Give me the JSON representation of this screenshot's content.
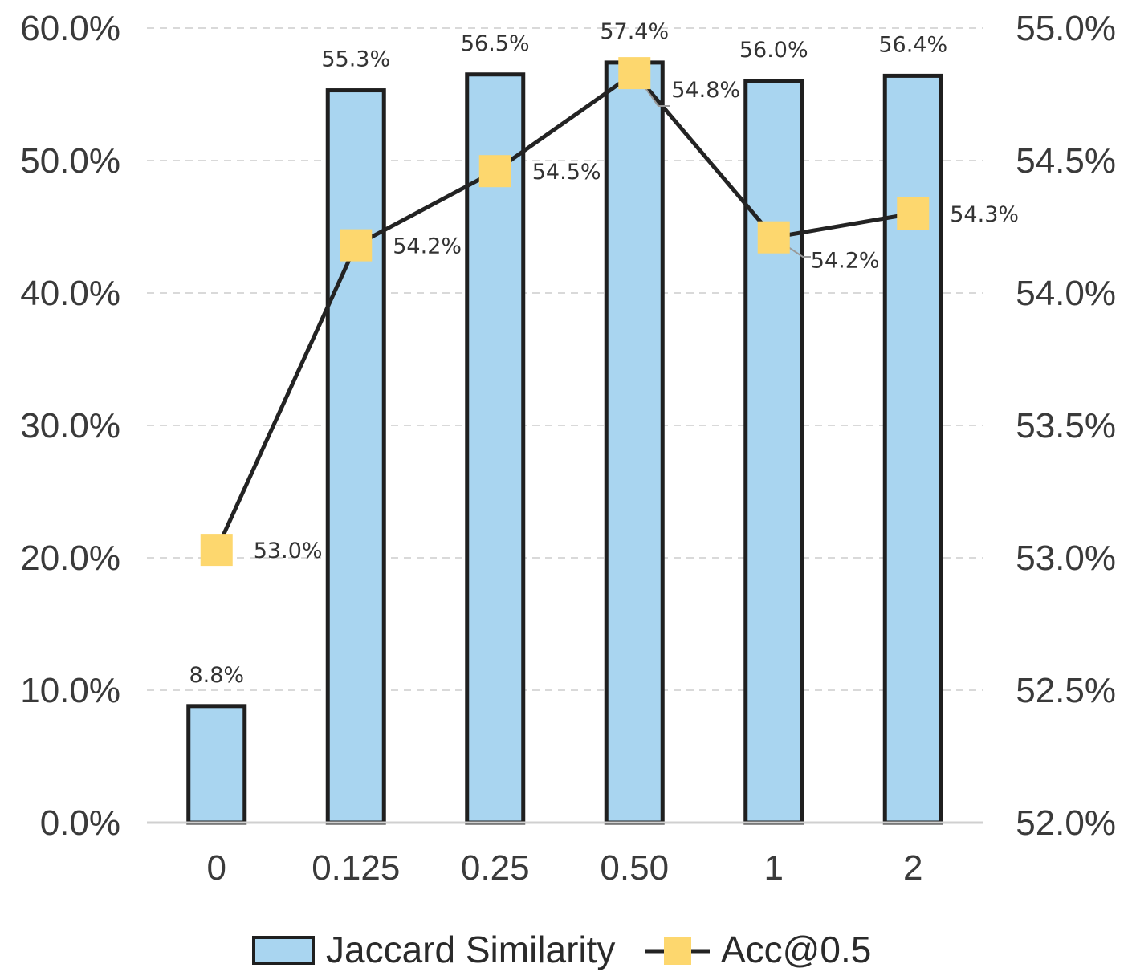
{
  "chart_data": {
    "type": "bar",
    "categories": [
      "0",
      "0.125",
      "0.25",
      "0.50",
      "1",
      "2"
    ],
    "series": [
      {
        "name": "Jaccard Similarity",
        "type": "bar",
        "axis": "left",
        "values": [
          8.8,
          55.3,
          56.5,
          57.4,
          56.0,
          56.4
        ],
        "labels": [
          "8.8%",
          "55.3%",
          "56.5%",
          "57.4%",
          "56.0%",
          "56.4%"
        ],
        "color": "#a9d5f0",
        "edge_color": "#1f1f1f"
      },
      {
        "name": "Acc@0.5",
        "type": "line",
        "axis": "right",
        "values": [
          53.03,
          54.18,
          54.46,
          54.83,
          54.21,
          54.3
        ],
        "labels": [
          "53.0%",
          "54.2%",
          "54.5%",
          "54.8%",
          "54.2%",
          "54.3%"
        ],
        "color": "#232323",
        "marker_color": "#fdd76e"
      }
    ],
    "y_left": {
      "range": [
        0,
        60
      ],
      "ticks": [
        0,
        10,
        20,
        30,
        40,
        50,
        60
      ],
      "tick_labels": [
        "0.0%",
        "10.0%",
        "20.0%",
        "30.0%",
        "40.0%",
        "50.0%",
        "60.0%"
      ]
    },
    "y_right": {
      "range": [
        52,
        55
      ],
      "ticks": [
        52,
        52.5,
        53,
        53.5,
        54,
        54.5,
        55
      ],
      "tick_labels": [
        "52.0%",
        "52.5%",
        "53.0%",
        "53.5%",
        "54.0%",
        "54.5%",
        "55.0%"
      ]
    },
    "grid": true,
    "legend_position": "bottom-center",
    "legend": [
      "Jaccard Similarity",
      "Acc@0.5"
    ],
    "title": "",
    "xlabel": "",
    "ylabel": ""
  }
}
